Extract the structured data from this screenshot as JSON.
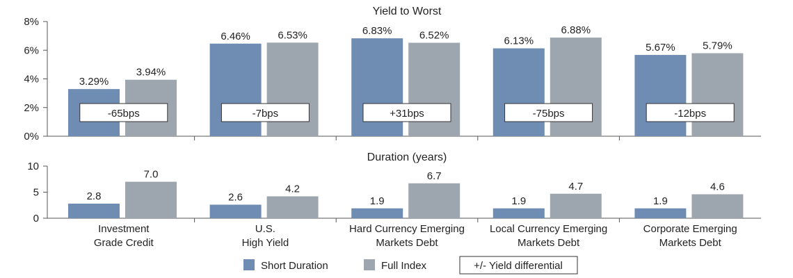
{
  "colors": {
    "short": "#6f8db3",
    "full": "#9da6ae",
    "axis": "#555555",
    "text": "#222222"
  },
  "legend": {
    "short_label": "Short Duration",
    "full_label": "Full Index",
    "diff_label": "+/- Yield differential"
  },
  "chart_data": [
    {
      "type": "bar",
      "title": "Yield to Worst",
      "ylim": [
        0,
        8
      ],
      "yticks": [
        "0%",
        "2%",
        "4%",
        "6%",
        "8%"
      ],
      "categories": [
        "Investment Grade Credit",
        "U.S. High Yield",
        "Hard Currency Emerging Markets Debt",
        "Local Currency Emerging Markets Debt",
        "Corporate Emerging Markets Debt"
      ],
      "series": [
        {
          "name": "Short Duration",
          "values": [
            3.29,
            6.46,
            6.83,
            6.13,
            5.67
          ],
          "labels": [
            "3.29%",
            "6.46%",
            "6.83%",
            "6.13%",
            "5.67%"
          ]
        },
        {
          "name": "Full Index",
          "values": [
            3.94,
            6.53,
            6.52,
            6.88,
            5.79
          ],
          "labels": [
            "3.94%",
            "6.53%",
            "6.52%",
            "6.88%",
            "5.79%"
          ]
        }
      ],
      "annotations": [
        "-65bps",
        "-7bps",
        "+31bps",
        "-75bps",
        "-12bps"
      ]
    },
    {
      "type": "bar",
      "title": "Duration (years)",
      "ylim": [
        0,
        10
      ],
      "yticks": [
        "0",
        "5",
        "10"
      ],
      "categories": [
        "Investment Grade Credit",
        "U.S. High Yield",
        "Hard Currency Emerging Markets Debt",
        "Local Currency Emerging Markets Debt",
        "Corporate Emerging Markets Debt"
      ],
      "series": [
        {
          "name": "Short Duration",
          "values": [
            2.8,
            2.6,
            1.9,
            1.9,
            1.9
          ],
          "labels": [
            "2.8",
            "2.6",
            "1.9",
            "1.9",
            "1.9"
          ]
        },
        {
          "name": "Full Index",
          "values": [
            7.0,
            4.2,
            6.7,
            4.7,
            4.6
          ],
          "labels": [
            "7.0",
            "4.2",
            "6.7",
            "4.7",
            "4.6"
          ]
        }
      ]
    }
  ],
  "category_lines": [
    [
      "Investment",
      "Grade Credit"
    ],
    [
      "U.S.",
      "High Yield"
    ],
    [
      "Hard Currency Emerging",
      "Markets Debt"
    ],
    [
      "Local Currency Emerging",
      "Markets Debt"
    ],
    [
      "Corporate Emerging",
      "Markets Debt"
    ]
  ]
}
